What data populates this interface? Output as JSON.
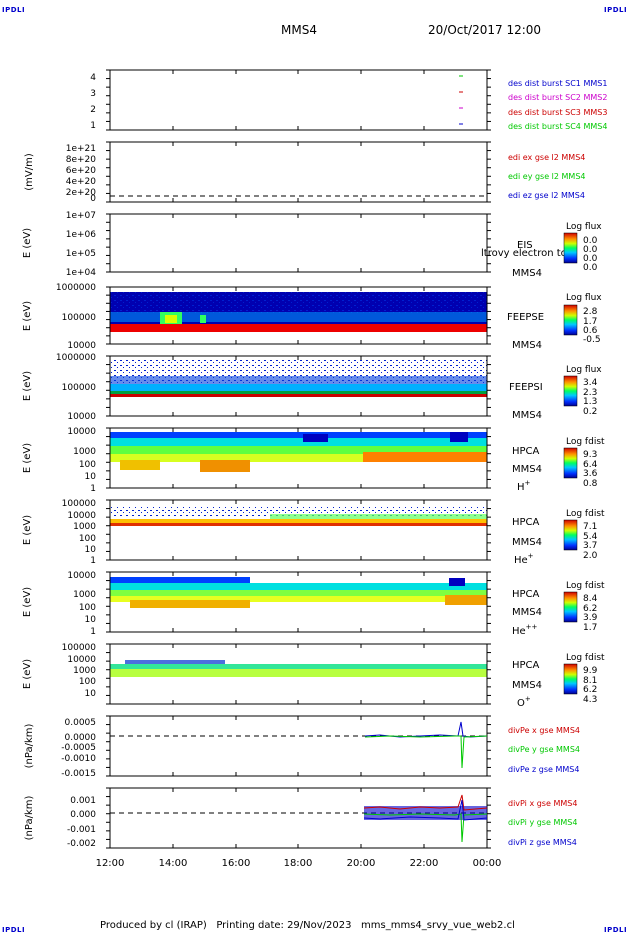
{
  "corner_label": "IPDLI",
  "header": {
    "spacecraft": "MMS4",
    "date": "20/Oct/2017 12:00"
  },
  "footer": "Produced by cl (IRAP)   Printing date: 29/Nov/2023   mms_mms4_srvy_vue_web2.cl",
  "colors": {
    "red": "#cc0000",
    "green": "#00c800",
    "blue": "#0000cc",
    "magenta": "#cc00cc"
  },
  "chart_data": [
    {
      "type": "line",
      "panel": "burst",
      "ytick_labels": [
        "1",
        "2",
        "3",
        "4"
      ],
      "legend": [
        {
          "text": "des dist burst SC1 MMS1",
          "color": "#0000cc"
        },
        {
          "text": "des dist burst SC2 MMS2",
          "color": "#cc00cc"
        },
        {
          "text": "des dist burst SC3 MMS3",
          "color": "#cc0000"
        },
        {
          "text": "des dist burst SC4 MMS4",
          "color": "#00c800"
        }
      ]
    },
    {
      "type": "line",
      "panel": "edi",
      "ylabel": "(mV/m)",
      "ytick_labels": [
        "1e+21",
        "8e+20",
        "6e+20",
        "4e+20",
        "2e+20",
        "0"
      ],
      "legend": [
        {
          "text": "edi ex gse l2 MMS4",
          "color": "#cc0000"
        },
        {
          "text": "edi ey gse l2 MMS4",
          "color": "#00c800"
        },
        {
          "text": "edi ez gse l2 MMS4",
          "color": "#0000cc"
        }
      ]
    },
    {
      "type": "heatmap",
      "panel": "eis",
      "ylabel": "E (eV)",
      "ytick_labels": [
        "1e+07",
        "1e+06",
        "1e+05",
        "1e+04"
      ],
      "instrument": "EIS",
      "instrument2": "MMS4",
      "overlay_text": "ltrovy electron to",
      "cbar_title": "Log flux",
      "cbar_ticks": [
        "0.0",
        "0.0",
        "0.0",
        "0.0"
      ]
    },
    {
      "type": "heatmap",
      "panel": "feepse",
      "ylabel": "E (eV)",
      "ytick_labels": [
        "1000000",
        "100000",
        "10000"
      ],
      "instrument": "FEEPSE",
      "instrument2": "MMS4",
      "cbar_title": "Log flux",
      "cbar_ticks": [
        "2.8",
        "1.7",
        "0.6",
        "-0.5"
      ]
    },
    {
      "type": "heatmap",
      "panel": "feepsi",
      "ylabel": "E (eV)",
      "ytick_labels": [
        "1000000",
        "100000",
        "10000"
      ],
      "instrument": "FEEPSI",
      "instrument2": "MMS4",
      "cbar_title": "Log flux",
      "cbar_ticks": [
        "3.4",
        "2.3",
        "1.3",
        "0.2"
      ]
    },
    {
      "type": "heatmap",
      "panel": "hpca_h",
      "ylabel": "E (eV)",
      "ytick_labels": [
        "10000",
        "1000",
        "100",
        "10",
        "1"
      ],
      "instrument": "HPCA",
      "instrument2": "MMS4",
      "species": "H",
      "species_sup": "+",
      "cbar_title": "Log fdist",
      "cbar_ticks": [
        "9.3",
        "6.4",
        "3.6",
        "0.8"
      ]
    },
    {
      "type": "heatmap",
      "panel": "hpca_he",
      "ylabel": "E (eV)",
      "ytick_labels": [
        "100000",
        "10000",
        "1000",
        "100",
        "10",
        "1"
      ],
      "instrument": "HPCA",
      "instrument2": "MMS4",
      "species": "He",
      "species_sup": "+",
      "cbar_title": "Log fdist",
      "cbar_ticks": [
        "7.1",
        "5.4",
        "3.7",
        "2.0"
      ]
    },
    {
      "type": "heatmap",
      "panel": "hpca_hepp",
      "ylabel": "E (eV)",
      "ytick_labels": [
        "10000",
        "1000",
        "100",
        "10",
        "1"
      ],
      "instrument": "HPCA",
      "instrument2": "MMS4",
      "species": "He",
      "species_sup": "++",
      "cbar_title": "Log fdist",
      "cbar_ticks": [
        "8.4",
        "6.2",
        "3.9",
        "1.7"
      ]
    },
    {
      "type": "heatmap",
      "panel": "hpca_o",
      "ylabel": "E (eV)",
      "ytick_labels": [
        "100000",
        "10000",
        "1000",
        "100",
        "10"
      ],
      "instrument": "HPCA",
      "instrument2": "MMS4",
      "species": "O",
      "species_sup": "+",
      "cbar_title": "Log fdist",
      "cbar_ticks": [
        "9.9",
        "8.1",
        "6.2",
        "4.3"
      ]
    },
    {
      "type": "line",
      "panel": "divpe",
      "ylabel": "(nPa/km)",
      "ytick_labels": [
        "0.0005",
        "0.0000",
        "-0.0005",
        "-0.0010",
        "-0.0015"
      ],
      "legend": [
        {
          "text": "divPe x gse MMS4",
          "color": "#cc0000"
        },
        {
          "text": "divPe y gse MMS4",
          "color": "#00c800"
        },
        {
          "text": "divPe z gse MMS4",
          "color": "#0000cc"
        }
      ]
    },
    {
      "type": "line",
      "panel": "divpi",
      "ylabel": "(nPa/km)",
      "ytick_labels": [
        "0.001",
        "0.000",
        "-0.001",
        "-0.002"
      ],
      "legend": [
        {
          "text": "divPi x gse MMS4",
          "color": "#cc0000"
        },
        {
          "text": "divPi y gse MMS4",
          "color": "#00c800"
        },
        {
          "text": "divPi z gse MMS4",
          "color": "#0000cc"
        }
      ]
    }
  ],
  "time_axis": [
    "12:00",
    "14:00",
    "16:00",
    "18:00",
    "20:00",
    "22:00",
    "00:00"
  ]
}
